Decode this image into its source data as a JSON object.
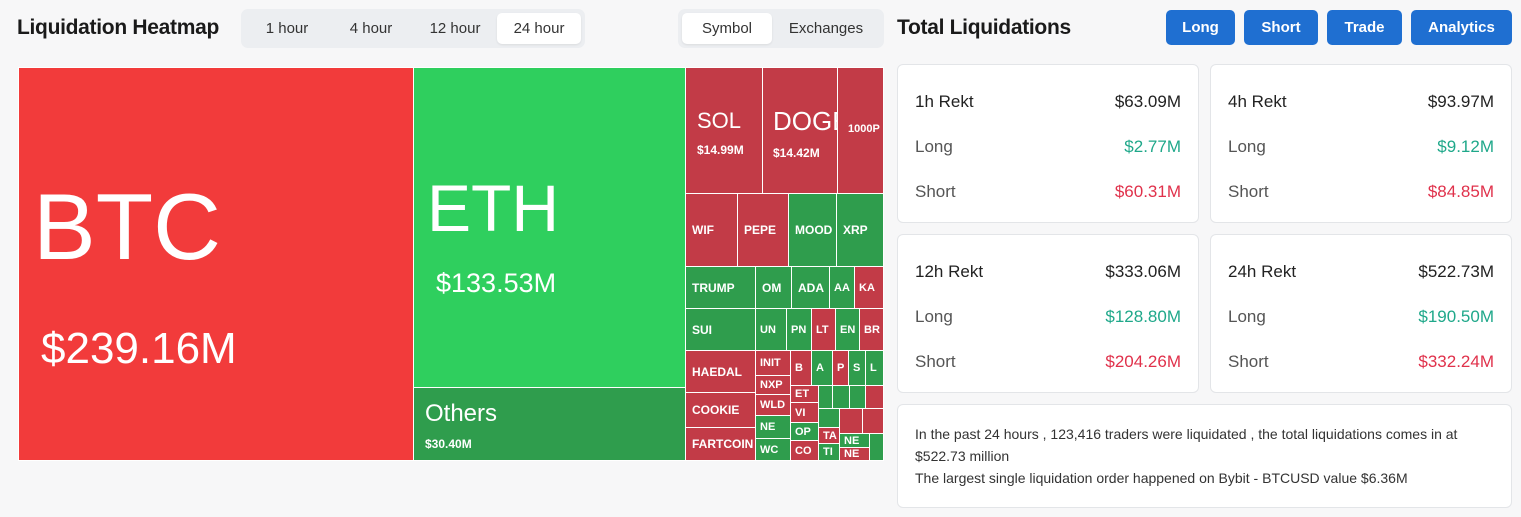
{
  "heatmap": {
    "title": "Liquidation Heatmap",
    "time_options": [
      "1 hour",
      "4 hour",
      "12 hour",
      "24 hour"
    ],
    "time_selected": "24 hour",
    "view_options": [
      "Symbol",
      "Exchanges"
    ],
    "view_selected": "Symbol",
    "cells": {
      "btc": {
        "name": "BTC",
        "value": "$239.16M"
      },
      "eth": {
        "name": "ETH",
        "value": "$133.53M"
      },
      "others": {
        "name": "Others",
        "value": "$30.40M"
      },
      "sol": {
        "name": "SOL",
        "value": "$14.99M"
      },
      "doge": {
        "name": "DOGE",
        "value": "$14.42M"
      },
      "thousandp": {
        "name": "1000P"
      },
      "wif": {
        "name": "WIF"
      },
      "pepe": {
        "name": "PEPE"
      },
      "mood": {
        "name": "MOOD"
      },
      "xrp": {
        "name": "XRP"
      },
      "trump": {
        "name": "TRUMP"
      },
      "om": {
        "name": "OM"
      },
      "ada": {
        "name": "ADA"
      },
      "aa": {
        "name": "AA"
      },
      "ka": {
        "name": "KA"
      },
      "sui": {
        "name": "SUI"
      },
      "un": {
        "name": "UN"
      },
      "pn": {
        "name": "PN"
      },
      "lt": {
        "name": "LT"
      },
      "en": {
        "name": "EN"
      },
      "br": {
        "name": "BR"
      },
      "haedal": {
        "name": "HAEDAL"
      },
      "init": {
        "name": "INIT"
      },
      "b": {
        "name": "B"
      },
      "a": {
        "name": "A"
      },
      "p": {
        "name": "P"
      },
      "s": {
        "name": "S"
      },
      "l": {
        "name": "L"
      },
      "nxp": {
        "name": "NXP"
      },
      "et": {
        "name": "ET"
      },
      "cookie": {
        "name": "COOKIE"
      },
      "wld": {
        "name": "WLD"
      },
      "vi": {
        "name": "VI"
      },
      "fartcoin": {
        "name": "FARTCOIN"
      },
      "ne": {
        "name": "NE"
      },
      "op": {
        "name": "OP"
      },
      "wc": {
        "name": "WC"
      },
      "co": {
        "name": "CO"
      },
      "ta": {
        "name": "TA"
      },
      "ti": {
        "name": "TI"
      },
      "ne2": {
        "name": "NE"
      },
      "ne3": {
        "name": "NE"
      }
    }
  },
  "totals": {
    "title": "Total Liquidations",
    "buttons": [
      "Long",
      "Short",
      "Trade",
      "Analytics"
    ],
    "cards": [
      {
        "label": "1h Rekt",
        "total": "$63.09M",
        "long_label": "Long",
        "long": "$2.77M",
        "short_label": "Short",
        "short": "$60.31M"
      },
      {
        "label": "4h Rekt",
        "total": "$93.97M",
        "long_label": "Long",
        "long": "$9.12M",
        "short_label": "Short",
        "short": "$84.85M"
      },
      {
        "label": "12h Rekt",
        "total": "$333.06M",
        "long_label": "Long",
        "long": "$128.80M",
        "short_label": "Short",
        "short": "$204.26M"
      },
      {
        "label": "24h Rekt",
        "total": "$522.73M",
        "long_label": "Long",
        "long": "$190.50M",
        "short_label": "Short",
        "short": "$332.24M"
      }
    ],
    "summary_line1": "In the past 24 hours , 123,416 traders were liquidated , the total liquidations comes in at $522.73 million",
    "summary_line2": "The largest single liquidation order happened on Bybit - BTCUSD value $6.36M"
  },
  "colors": {
    "long": "#1fa88a",
    "short": "#e0314b",
    "button": "#1f6fd1",
    "heat_red": "#f23b3b",
    "heat_green": "#2fcf5e"
  }
}
